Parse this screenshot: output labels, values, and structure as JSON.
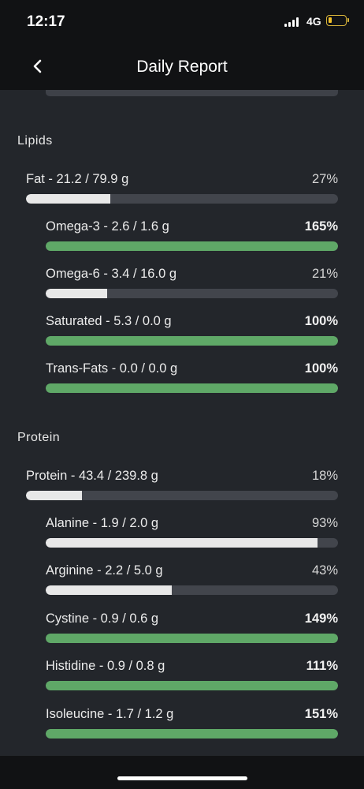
{
  "status_bar": {
    "time": "12:17",
    "network": "4G"
  },
  "header": {
    "title": "Daily Report"
  },
  "sections": [
    {
      "title": "Lipids"
    },
    {
      "title": "Protein"
    }
  ],
  "nutrients": [
    {
      "label": "Fat - 21.2 / 79.9 g",
      "percent": "27%",
      "fill": 27,
      "highlight": false
    },
    {
      "label": "Omega-3 - 2.6 / 1.6 g",
      "percent": "165%",
      "fill": 100,
      "highlight": true
    },
    {
      "label": "Omega-6 - 3.4 / 16.0 g",
      "percent": "21%",
      "fill": 21,
      "highlight": false
    },
    {
      "label": "Saturated - 5.3 / 0.0 g",
      "percent": "100%",
      "fill": 100,
      "highlight": true
    },
    {
      "label": "Trans-Fats - 0.0 / 0.0 g",
      "percent": "100%",
      "fill": 100,
      "highlight": true
    },
    {
      "label": "Protein - 43.4 / 239.8 g",
      "percent": "18%",
      "fill": 18,
      "highlight": false
    },
    {
      "label": "Alanine - 1.9 / 2.0 g",
      "percent": "93%",
      "fill": 93,
      "highlight": false
    },
    {
      "label": "Arginine - 2.2 / 5.0 g",
      "percent": "43%",
      "fill": 43,
      "highlight": false
    },
    {
      "label": "Cystine - 0.9 / 0.6 g",
      "percent": "149%",
      "fill": 100,
      "highlight": true
    },
    {
      "label": "Histidine - 0.9 / 0.8 g",
      "percent": "111%",
      "fill": 100,
      "highlight": true
    },
    {
      "label": "Isoleucine - 1.7 / 1.2 g",
      "percent": "151%",
      "fill": 100,
      "highlight": true
    }
  ],
  "colors": {
    "complete_bar": "#5fa867",
    "partial_bar": "#e8e8e8",
    "track": "#42454c"
  }
}
